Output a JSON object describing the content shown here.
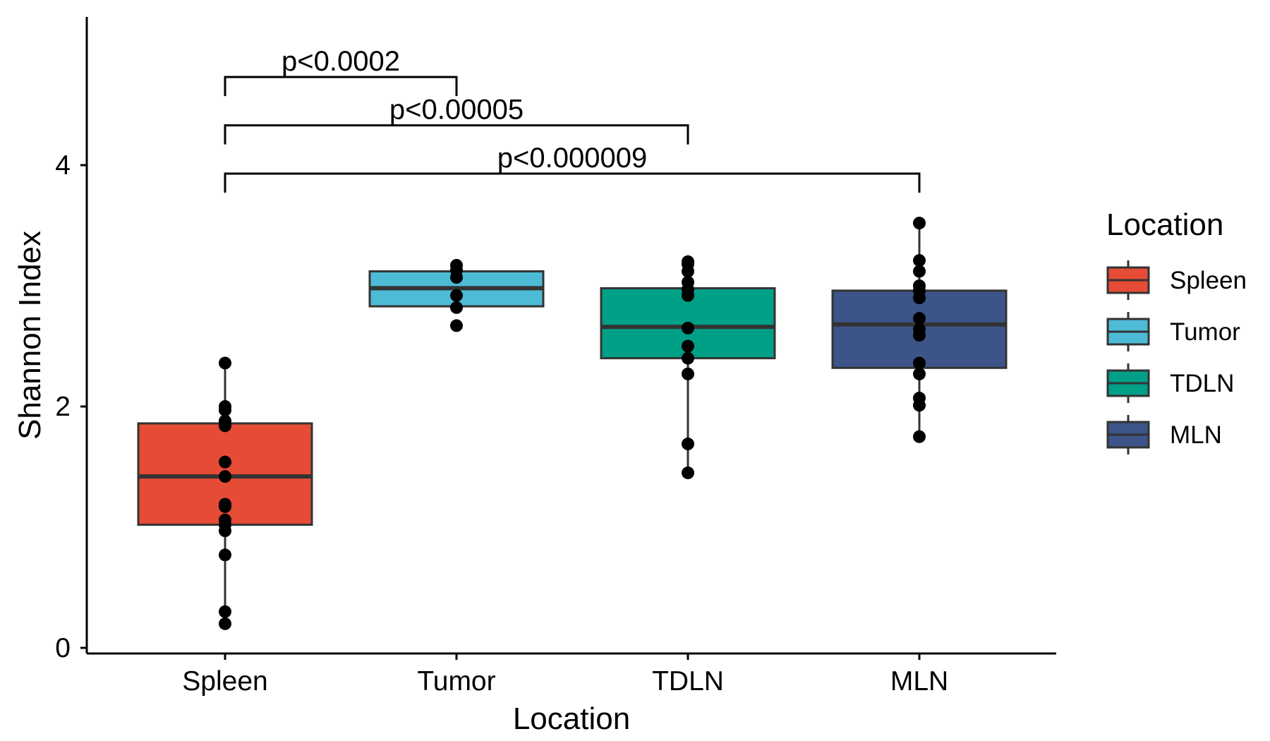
{
  "chart_data": {
    "type": "box",
    "xlabel": "Location",
    "ylabel": "Shannon Index",
    "categories": [
      "Spleen",
      "Tumor",
      "TDLN",
      "MLN"
    ],
    "y_ticks": [
      0,
      2,
      4
    ],
    "y_tick_labels": [
      "0",
      "2",
      "4"
    ],
    "ylim": [
      -0.05,
      5.3
    ],
    "grid": false,
    "legend": {
      "title": "Location",
      "position": "right",
      "entries": [
        "Spleen",
        "Tumor",
        "TDLN",
        "MLN"
      ]
    },
    "colors": {
      "Spleen": "#E64B35",
      "Tumor": "#4DBBD5",
      "TDLN": "#00A087",
      "MLN": "#3C5488",
      "box_outline": "#333333",
      "points": "#000000"
    },
    "boxes": [
      {
        "category": "Spleen",
        "whisker_low": 0.2,
        "q1": 1.02,
        "median": 1.42,
        "q3": 1.86,
        "whisker_high": 2.36
      },
      {
        "category": "Tumor",
        "whisker_low": 2.82,
        "q1": 2.83,
        "median": 2.98,
        "q3": 3.12,
        "whisker_high": 3.13
      },
      {
        "category": "TDLN",
        "whisker_low": 1.45,
        "q1": 2.4,
        "median": 2.66,
        "q3": 2.98,
        "whisker_high": 3.18
      },
      {
        "category": "MLN",
        "whisker_low": 1.75,
        "q1": 2.32,
        "median": 2.68,
        "q3": 2.96,
        "whisker_high": 3.52
      }
    ],
    "points": [
      {
        "category": "Spleen",
        "values": [
          0.2,
          0.3,
          0.77,
          0.97,
          1.02,
          1.06,
          1.17,
          1.19,
          1.42,
          1.54,
          1.84,
          1.88,
          1.97,
          2.0,
          2.36
        ]
      },
      {
        "category": "Tumor",
        "values": [
          2.67,
          2.82,
          2.92,
          3.07,
          3.13,
          3.17
        ]
      },
      {
        "category": "TDLN",
        "values": [
          1.45,
          1.69,
          2.27,
          2.4,
          2.5,
          2.65,
          2.92,
          2.97,
          3.03,
          3.12,
          3.18,
          3.2
        ]
      },
      {
        "category": "MLN",
        "values": [
          1.75,
          2.01,
          2.07,
          2.27,
          2.36,
          2.59,
          2.64,
          2.73,
          2.9,
          2.96,
          3.0,
          3.12,
          3.21,
          3.52
        ]
      }
    ],
    "significance": [
      {
        "from": "Spleen",
        "to": "Tumor",
        "label": "p<0.0002",
        "y": 4.73
      },
      {
        "from": "Spleen",
        "to": "TDLN",
        "label": "p<0.00005",
        "y": 4.33
      },
      {
        "from": "Spleen",
        "to": "MLN",
        "label": "p<0.000009",
        "y": 3.93
      }
    ]
  }
}
